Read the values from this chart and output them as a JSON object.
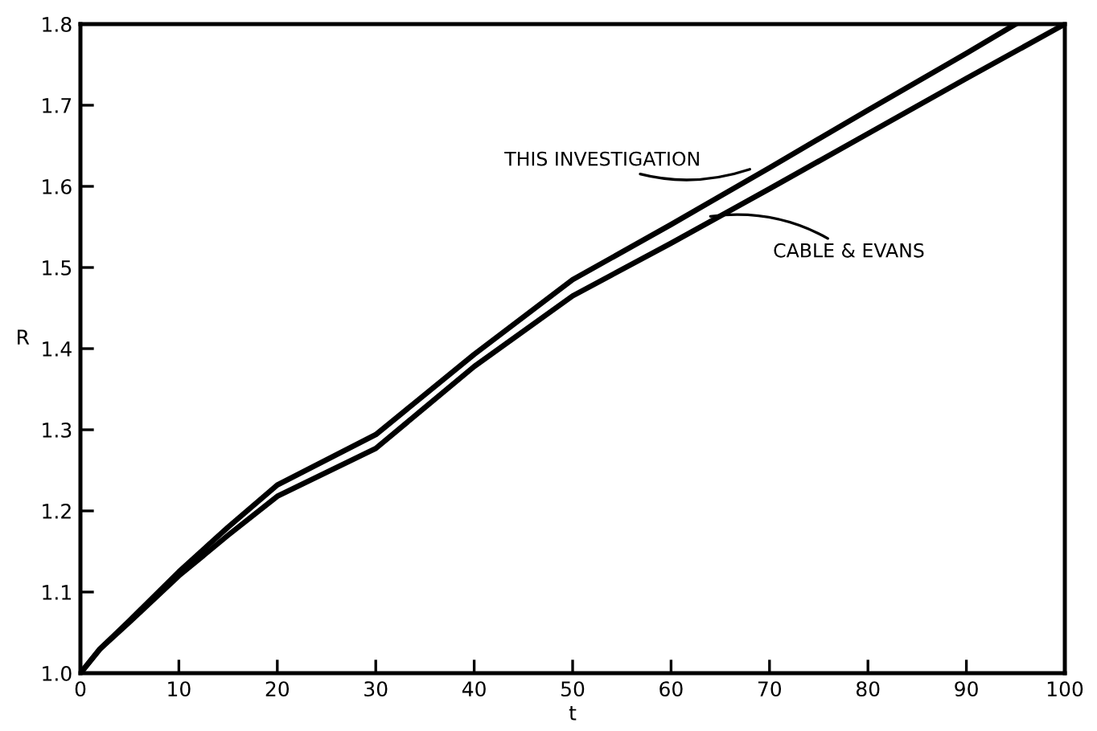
{
  "chart_data": {
    "type": "line",
    "xlabel": "t",
    "ylabel": "R",
    "xlim": [
      0,
      100
    ],
    "ylim": [
      1.0,
      1.8
    ],
    "xticks": [
      0,
      10,
      20,
      30,
      40,
      50,
      60,
      70,
      80,
      90,
      100
    ],
    "yticks": [
      {
        "value": 1.0,
        "label": "1.0"
      },
      1.1,
      1.2,
      1.3,
      1.4,
      1.5,
      1.6,
      1.7,
      1.8
    ],
    "grid": false,
    "legend": false,
    "marker": "none",
    "line_style": "solid",
    "series": [
      {
        "color": "#000000",
        "x": [
          0,
          2,
          5,
          10,
          15,
          20,
          30,
          40,
          50,
          60,
          70,
          80,
          90,
          95
        ],
        "values": [
          1.0,
          1.03,
          1.065,
          1.125,
          1.18,
          1.232,
          1.294,
          1.393,
          1.485,
          1.553,
          1.623,
          1.694,
          1.764,
          1.8
        ]
      },
      {
        "color": "#000000",
        "x": [
          0,
          2,
          5,
          10,
          15,
          20,
          30,
          40,
          50,
          60,
          70,
          80,
          90,
          100
        ],
        "values": [
          1.0,
          1.03,
          1.063,
          1.12,
          1.17,
          1.218,
          1.277,
          1.378,
          1.465,
          1.53,
          1.597,
          1.665,
          1.733,
          1.8
        ]
      }
    ],
    "annotations": [
      {
        "text": "THIS INVESTIGATION",
        "x": 68,
        "y": 1.621
      },
      {
        "text": "CABLE & EVANS",
        "x": 64,
        "y": 1.563
      }
    ]
  }
}
